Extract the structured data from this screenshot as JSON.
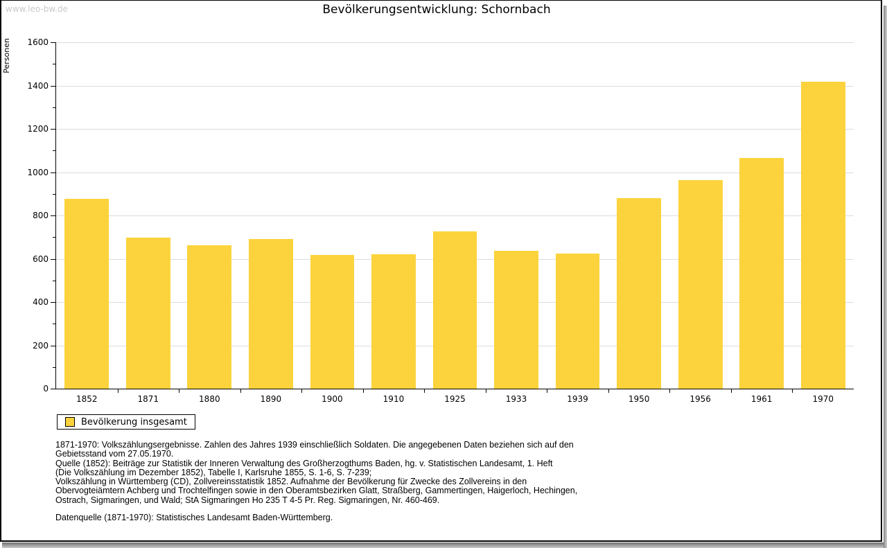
{
  "watermark": "www.leo-bw.de",
  "chart_data": {
    "type": "bar",
    "title": "Bevölkerungsentwicklung: Schornbach",
    "ylabel": "Personen",
    "xlabel": "",
    "categories": [
      "1852",
      "1871",
      "1880",
      "1890",
      "1900",
      "1910",
      "1925",
      "1933",
      "1939",
      "1950",
      "1956",
      "1961",
      "1970"
    ],
    "values": [
      878,
      699,
      663,
      690,
      617,
      621,
      725,
      638,
      623,
      880,
      962,
      1066,
      1417
    ],
    "ylim": [
      0,
      1600
    ],
    "ytick_step": 200,
    "minor_tick_step": 100,
    "grid": "horizontal-major",
    "bar_color": "#fcd33c",
    "legend_position": "bottom-left",
    "legend": [
      {
        "label": "Bevölkerung insgesamt",
        "color": "#fcd33c"
      }
    ]
  },
  "footnotes": {
    "lines": [
      "1871-1970: Volkszählungsergebnisse. Zahlen des Jahres 1939 einschließlich Soldaten. Die angegebenen Daten beziehen sich auf den",
      "Gebietsstand vom 27.05.1970.",
      "Quelle (1852): Beiträge zur Statistik der Inneren Verwaltung des Großherzogthums Baden, hg. v. Statistischen Landesamt, 1. Heft",
      "(Die Volkszählung im Dezember 1852), Tabelle I, Karlsruhe 1855, S. 1-6, S. 7-239;",
      "Volkszählung in Württemberg (CD), Zollvereinsstatistik 1852. Aufnahme der Bevölkerung für Zwecke des Zollvereins in den",
      "Obervogteiämtern Achberg und Trochtelfingen sowie in den Oberamtsbezirken Glatt, Straßberg, Gammertingen, Haigerloch, Hechingen,",
      "Ostrach, Sigmaringen, und Wald; StA Sigmaringen Ho 235 T 4-5 Pr. Reg. Sigmaringen, Nr. 460-469."
    ],
    "datasource": "Datenquelle (1871-1970): Statistisches Landesamt Baden-Württemberg."
  }
}
